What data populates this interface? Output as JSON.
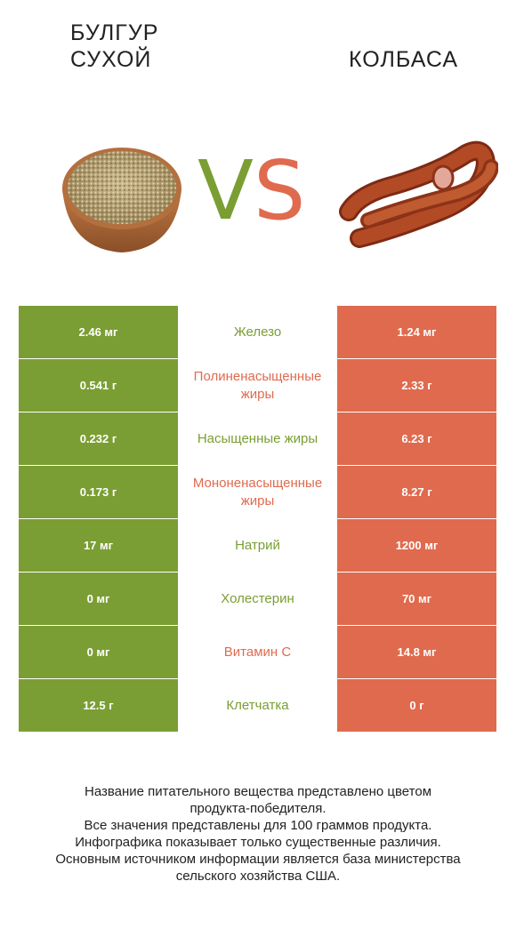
{
  "left_food": {
    "title_line1": "Булгур",
    "title_line2": "сухой"
  },
  "right_food": {
    "title": "Колбаса"
  },
  "vs": {
    "v": "V",
    "s": "S"
  },
  "colors": {
    "left": "#7a9e33",
    "right": "#e06a4e"
  },
  "rows": [
    {
      "left": "2.46 мг",
      "name": "Железо",
      "right": "1.24 мг",
      "winner": "left"
    },
    {
      "left": "0.541 г",
      "name": "Полиненасыщенные жиры",
      "right": "2.33 г",
      "winner": "right"
    },
    {
      "left": "0.232 г",
      "name": "Насыщенные жиры",
      "right": "6.23 г",
      "winner": "left"
    },
    {
      "left": "0.173 г",
      "name": "Мононенасыщенные жиры",
      "right": "8.27 г",
      "winner": "right"
    },
    {
      "left": "17 мг",
      "name": "Натрий",
      "right": "1200 мг",
      "winner": "left"
    },
    {
      "left": "0 мг",
      "name": "Холестерин",
      "right": "70 мг",
      "winner": "left"
    },
    {
      "left": "0 мг",
      "name": "Витамин C",
      "right": "14.8 мг",
      "winner": "right"
    },
    {
      "left": "12.5 г",
      "name": "Клетчатка",
      "right": "0 г",
      "winner": "left"
    }
  ],
  "footnote": {
    "line1": "Название питательного вещества представлено цветом",
    "line2": "продукта-победителя.",
    "line3": "Все значения представлены для 100 граммов продукта.",
    "line4": "Инфографика показывает только существенные различия.",
    "line5": "Основным источником информации является база министерства",
    "line6": "сельского хозяйства США."
  }
}
